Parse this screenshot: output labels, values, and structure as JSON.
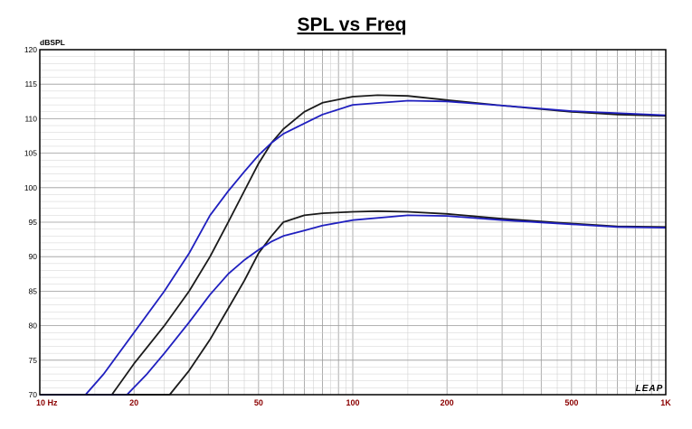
{
  "chart_data": {
    "type": "line",
    "title": "SPL vs Freq",
    "ylabel": "dBSPL",
    "xscale": "log",
    "xlim": [
      10,
      1000
    ],
    "ylim": [
      70,
      120
    ],
    "grid": true,
    "x_ticks": [
      {
        "value": 10,
        "label": "10 Hz"
      },
      {
        "value": 20,
        "label": "20"
      },
      {
        "value": 50,
        "label": "50"
      },
      {
        "value": 100,
        "label": "100"
      },
      {
        "value": 200,
        "label": "200"
      },
      {
        "value": 500,
        "label": "500"
      },
      {
        "value": 1000,
        "label": "1K"
      }
    ],
    "y_ticks": [
      70,
      75,
      80,
      85,
      90,
      95,
      100,
      105,
      110,
      115,
      120
    ],
    "series": [
      {
        "color": "#1a1a1a",
        "points": [
          [
            10,
            70
          ],
          [
            17,
            70
          ],
          [
            20,
            74.5
          ],
          [
            25,
            80
          ],
          [
            30,
            85
          ],
          [
            35,
            90
          ],
          [
            40,
            95
          ],
          [
            45,
            99.5
          ],
          [
            50,
            103.5
          ],
          [
            55,
            106.5
          ],
          [
            60,
            108.5
          ],
          [
            70,
            111
          ],
          [
            80,
            112.3
          ],
          [
            100,
            113.2
          ],
          [
            120,
            113.4
          ],
          [
            150,
            113.3
          ],
          [
            200,
            112.7
          ],
          [
            300,
            111.9
          ],
          [
            500,
            111
          ],
          [
            700,
            110.6
          ],
          [
            1000,
            110.4
          ]
        ]
      },
      {
        "color": "#1f1fbf",
        "points": [
          [
            10,
            70
          ],
          [
            14,
            70
          ],
          [
            16,
            73
          ],
          [
            20,
            79
          ],
          [
            25,
            85
          ],
          [
            30,
            90.5
          ],
          [
            35,
            96
          ],
          [
            40,
            99.5
          ],
          [
            45,
            102.3
          ],
          [
            50,
            104.7
          ],
          [
            55,
            106.5
          ],
          [
            60,
            107.8
          ],
          [
            70,
            109.3
          ],
          [
            80,
            110.6
          ],
          [
            100,
            112
          ],
          [
            150,
            112.6
          ],
          [
            200,
            112.5
          ],
          [
            300,
            111.9
          ],
          [
            500,
            111.1
          ],
          [
            1000,
            110.5
          ]
        ]
      },
      {
        "color": "#1a1a1a",
        "points": [
          [
            10,
            70
          ],
          [
            26,
            70
          ],
          [
            30,
            73.5
          ],
          [
            35,
            78
          ],
          [
            40,
            82.5
          ],
          [
            45,
            86.5
          ],
          [
            50,
            90.5
          ],
          [
            55,
            93
          ],
          [
            60,
            95
          ],
          [
            70,
            96
          ],
          [
            80,
            96.3
          ],
          [
            100,
            96.5
          ],
          [
            120,
            96.6
          ],
          [
            150,
            96.5
          ],
          [
            200,
            96.2
          ],
          [
            300,
            95.5
          ],
          [
            500,
            94.8
          ],
          [
            700,
            94.4
          ],
          [
            1000,
            94.3
          ]
        ]
      },
      {
        "color": "#1f1fbf",
        "points": [
          [
            10,
            70
          ],
          [
            19,
            70
          ],
          [
            22,
            73
          ],
          [
            25,
            76
          ],
          [
            30,
            80.5
          ],
          [
            35,
            84.5
          ],
          [
            40,
            87.5
          ],
          [
            45,
            89.5
          ],
          [
            50,
            91
          ],
          [
            55,
            92.2
          ],
          [
            60,
            93
          ],
          [
            70,
            93.8
          ],
          [
            80,
            94.5
          ],
          [
            100,
            95.3
          ],
          [
            150,
            96
          ],
          [
            200,
            95.9
          ],
          [
            300,
            95.3
          ],
          [
            500,
            94.7
          ],
          [
            700,
            94.3
          ],
          [
            1000,
            94.2
          ]
        ]
      }
    ]
  },
  "logo_text": "LEAP"
}
